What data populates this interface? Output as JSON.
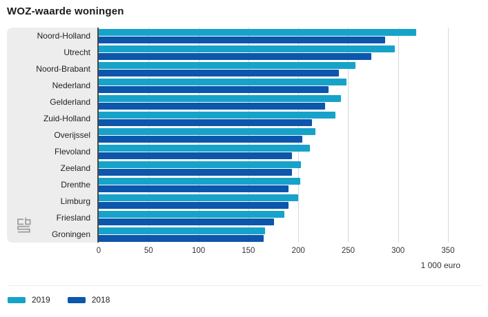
{
  "title": "WOZ-waarde woningen",
  "chart_data": {
    "type": "bar",
    "orientation": "horizontal",
    "title": "WOZ-waarde woningen",
    "categories": [
      "Noord-Holland",
      "Utrecht",
      "Noord-Brabant",
      "Nederland",
      "Gelderland",
      "Zuid-Holland",
      "Overijssel",
      "Flevoland",
      "Zeeland",
      "Drenthe",
      "Limburg",
      "Friesland",
      "Groningen"
    ],
    "series": [
      {
        "name": "2019",
        "color": "#17a3c9",
        "values": [
          318,
          297,
          257,
          248,
          243,
          237,
          217,
          212,
          203,
          202,
          200,
          186,
          167
        ]
      },
      {
        "name": "2018",
        "color": "#0c56ac",
        "values": [
          287,
          273,
          241,
          230,
          227,
          214,
          204,
          194,
          194,
          190,
          190,
          176,
          165
        ]
      }
    ],
    "x_ticks": [
      0,
      50,
      100,
      150,
      200,
      250,
      300,
      350
    ],
    "xlim": [
      0,
      380
    ],
    "x_unit_label": "1 000 euro",
    "grid": "vertical",
    "legend_position": "bottom-left"
  },
  "legend": {
    "items": [
      {
        "label": "2019",
        "color": "#17a3c9"
      },
      {
        "label": "2018",
        "color": "#0c56ac"
      }
    ]
  },
  "footer": {
    "unit_label": "1 000 euro"
  },
  "logo": {
    "name": "cbs-logo"
  },
  "colors": {
    "series_2019": "#17a3c9",
    "series_2018": "#0c56ac",
    "label_panel": "#ededed",
    "axis_line": "#474747",
    "gridline": "#d8d8d8",
    "title_text": "#1a1a1a"
  }
}
